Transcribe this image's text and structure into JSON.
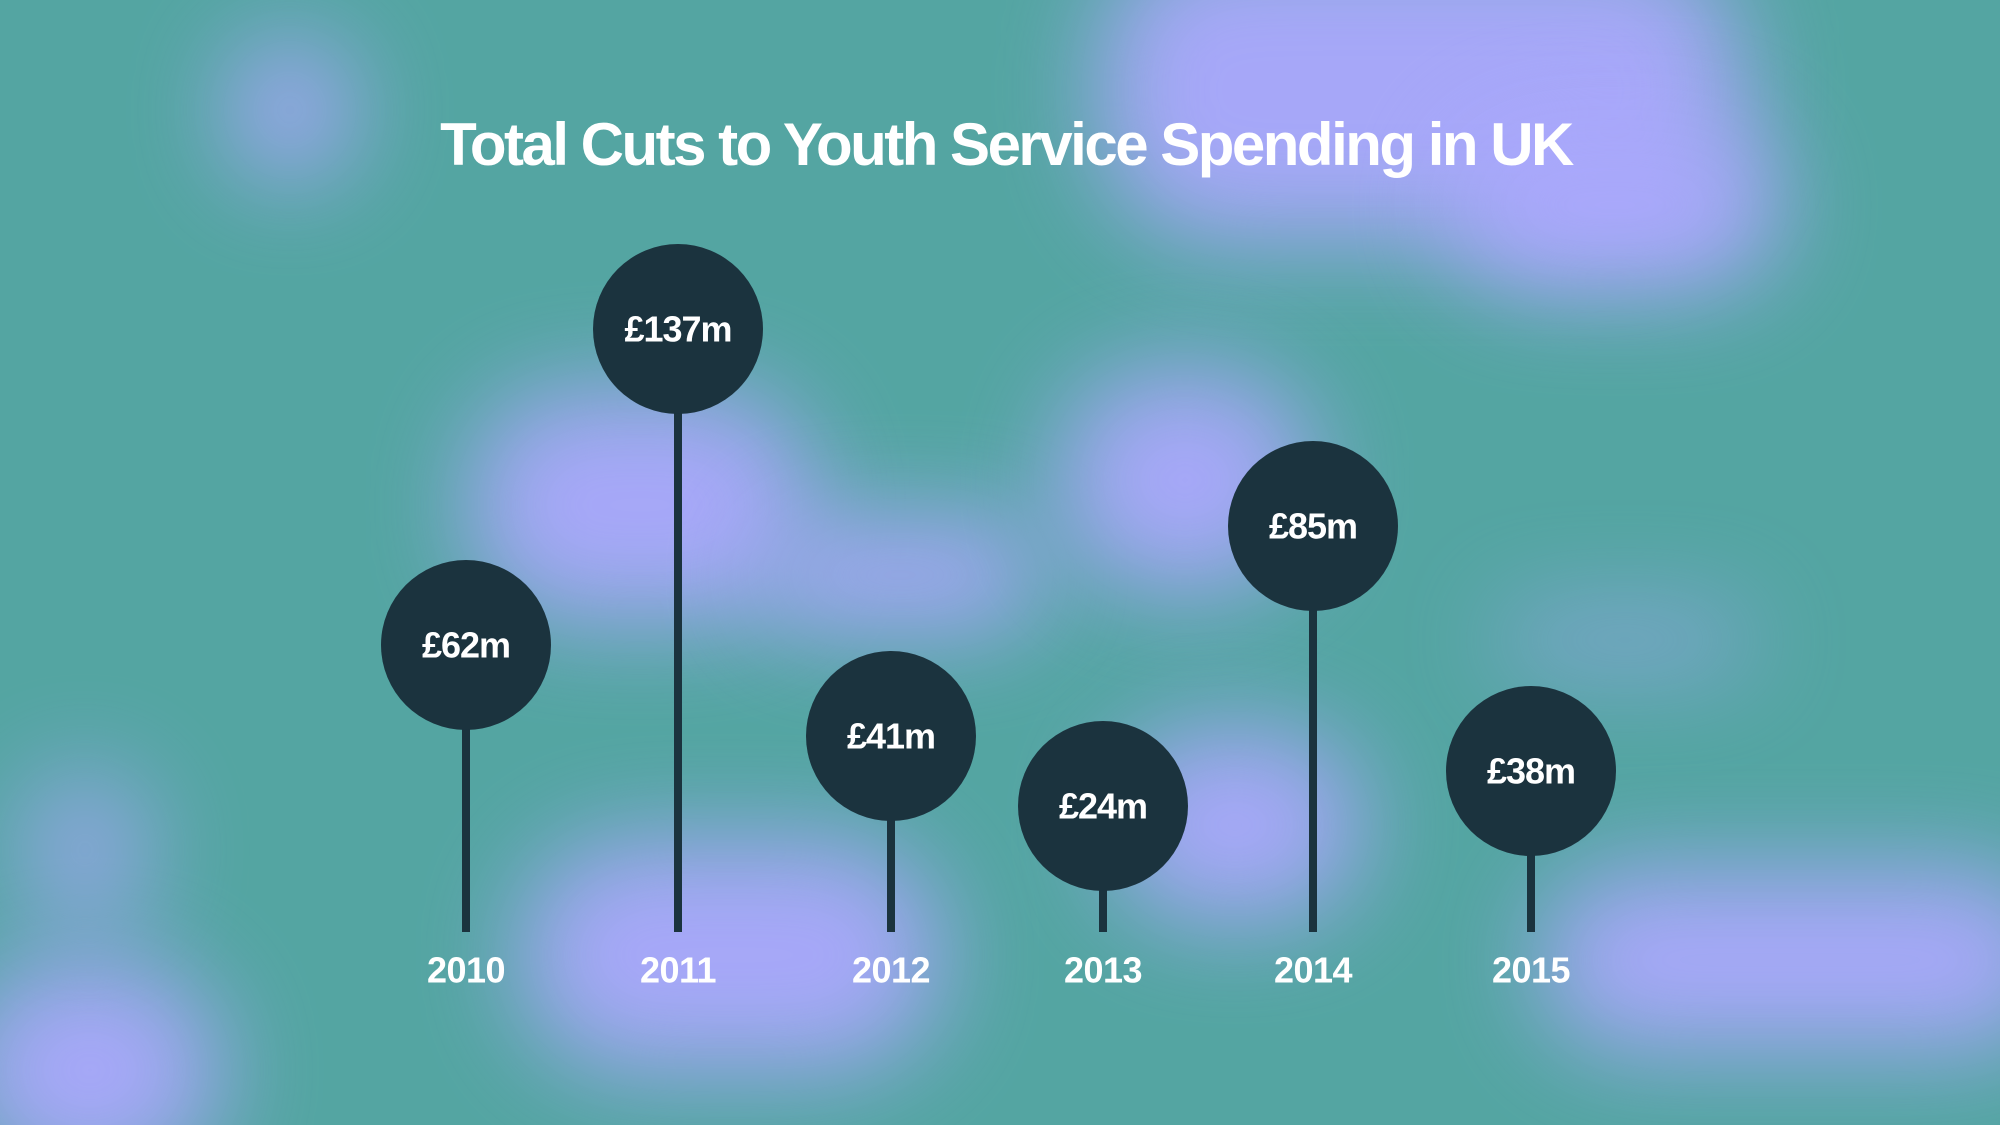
{
  "colors": {
    "background": "#54a5a2",
    "blob": "#aba8fd",
    "marker": "#1b333e",
    "text": "#ffffff"
  },
  "chart_data": {
    "type": "bar",
    "title": "Total Cuts to Youth Service Spending in UK",
    "categories": [
      "2010",
      "2011",
      "2012",
      "2013",
      "2014",
      "2015"
    ],
    "values": [
      62,
      137,
      41,
      24,
      85,
      38
    ],
    "labels": [
      "£62m",
      "£137m",
      "£41m",
      "£24m",
      "£85m",
      "£38m"
    ],
    "xlabel": "",
    "ylabel": "",
    "grid": false,
    "legend": "none"
  }
}
